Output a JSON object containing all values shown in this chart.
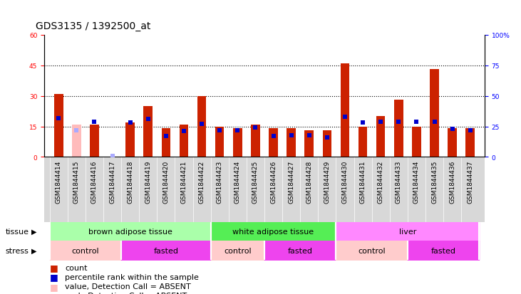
{
  "title": "GDS3135 / 1392500_at",
  "samples": [
    "GSM1844414",
    "GSM1844415",
    "GSM1844416",
    "GSM1844417",
    "GSM1844418",
    "GSM1844419",
    "GSM1844420",
    "GSM1844421",
    "GSM1844422",
    "GSM1844423",
    "GSM1844424",
    "GSM1844425",
    "GSM1844426",
    "GSM1844427",
    "GSM1844428",
    "GSM1844429",
    "GSM1844430",
    "GSM1844431",
    "GSM1844432",
    "GSM1844433",
    "GSM1844434",
    "GSM1844435",
    "GSM1844436",
    "GSM1844437"
  ],
  "count_values": [
    31,
    16,
    16,
    0,
    17,
    25,
    14,
    16,
    30,
    15,
    14,
    16,
    14,
    14,
    13,
    13,
    46,
    15,
    20,
    28,
    15,
    43,
    14,
    14
  ],
  "count_absent": [
    false,
    true,
    false,
    true,
    false,
    false,
    false,
    false,
    false,
    false,
    false,
    false,
    false,
    false,
    false,
    false,
    false,
    false,
    false,
    false,
    false,
    false,
    false,
    false
  ],
  "rank_values": [
    32,
    22,
    29,
    1,
    28,
    31,
    17,
    21,
    27,
    22,
    22,
    24,
    17,
    18,
    18,
    16,
    33,
    28,
    29,
    29,
    29,
    29,
    23,
    22
  ],
  "rank_absent": [
    false,
    true,
    false,
    true,
    false,
    false,
    false,
    false,
    false,
    false,
    false,
    false,
    false,
    false,
    false,
    false,
    false,
    false,
    false,
    false,
    false,
    false,
    false,
    false
  ],
  "ylim_left": [
    0,
    60
  ],
  "ylim_right": [
    0,
    100
  ],
  "yticks_left": [
    0,
    15,
    30,
    45,
    60
  ],
  "yticks_right": [
    0,
    25,
    50,
    75,
    100
  ],
  "ytick_labels_right": [
    "0",
    "25",
    "50",
    "75",
    "100%"
  ],
  "hlines": [
    15,
    30,
    45
  ],
  "tissue_groups": [
    {
      "label": "brown adipose tissue",
      "start": 0,
      "end": 9,
      "color": "#aaffaa"
    },
    {
      "label": "white adipose tissue",
      "start": 9,
      "end": 16,
      "color": "#55ee55"
    },
    {
      "label": "liver",
      "start": 16,
      "end": 24,
      "color": "#ff88ff"
    }
  ],
  "stress_groups": [
    {
      "label": "control",
      "start": 0,
      "end": 4,
      "color": "#ffcccc"
    },
    {
      "label": "fasted",
      "start": 4,
      "end": 9,
      "color": "#ee44ee"
    },
    {
      "label": "control",
      "start": 9,
      "end": 12,
      "color": "#ffcccc"
    },
    {
      "label": "fasted",
      "start": 12,
      "end": 16,
      "color": "#ee44ee"
    },
    {
      "label": "control",
      "start": 16,
      "end": 20,
      "color": "#ffcccc"
    },
    {
      "label": "fasted",
      "start": 20,
      "end": 24,
      "color": "#ee44ee"
    }
  ],
  "bar_color_present": "#cc2200",
  "bar_color_absent": "#ffbbbb",
  "rank_color_present": "#0000cc",
  "rank_color_absent": "#aaaaff",
  "bar_width": 0.5,
  "marker_size": 5,
  "title_fontsize": 10,
  "tick_fontsize": 6.5,
  "label_fontsize": 8,
  "legend_fontsize": 8,
  "xtick_bg_color": "#d8d8d8"
}
